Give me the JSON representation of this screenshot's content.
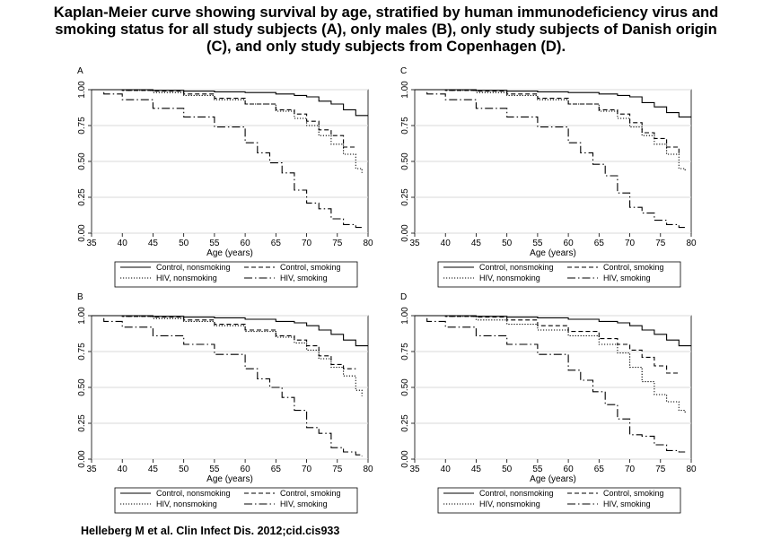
{
  "title": {
    "line1": "Kaplan-Meier curve showing survival by age, stratified by human immunodeficiency virus and",
    "line2": "smoking status for all study subjects (A),  only males (B), only study subjects of Danish origin",
    "line3": "(C), and only study subjects from Copenhagen (D)."
  },
  "citation": "Helleberg M et al. Clin Infect Dis. 2012;cid.cis933",
  "colors": {
    "background": "#ffffff",
    "line": "#000000",
    "grid": "#d9d9d9"
  },
  "chart_data": [
    {
      "panel": "A",
      "type": "line",
      "xlabel": "Age (years)",
      "ylabel": "",
      "xlim": [
        35,
        80
      ],
      "ylim": [
        0,
        1
      ],
      "xticks": [
        "35",
        "40",
        "45",
        "50",
        "55",
        "60",
        "65",
        "70",
        "75",
        "80"
      ],
      "yticks": [
        "0.00",
        "0.25",
        "0.50",
        "0.75",
        "1.00"
      ],
      "grid": true,
      "legend_placement": "bottom",
      "series": [
        {
          "name": "Control, nonsmoking",
          "style": "solid",
          "x": [
            35,
            40,
            45,
            50,
            55,
            60,
            65,
            68,
            70,
            72,
            74,
            76,
            78,
            80
          ],
          "y": [
            1.0,
            1.0,
            0.995,
            0.99,
            0.985,
            0.98,
            0.97,
            0.96,
            0.95,
            0.92,
            0.9,
            0.86,
            0.82,
            0.82
          ]
        },
        {
          "name": "Control, smoking",
          "style": "dashed",
          "x": [
            35,
            40,
            45,
            50,
            55,
            60,
            65,
            68,
            70,
            72,
            74,
            76,
            78
          ],
          "y": [
            1.0,
            0.995,
            0.99,
            0.97,
            0.94,
            0.9,
            0.86,
            0.83,
            0.78,
            0.72,
            0.68,
            0.6,
            0.6
          ]
        },
        {
          "name": "HIV, nonsmoking",
          "style": "dotted",
          "x": [
            35,
            40,
            45,
            50,
            55,
            60,
            65,
            68,
            70,
            72,
            74,
            76,
            78,
            79
          ],
          "y": [
            1.0,
            0.995,
            0.98,
            0.96,
            0.93,
            0.9,
            0.85,
            0.8,
            0.75,
            0.68,
            0.62,
            0.55,
            0.45,
            0.42
          ]
        },
        {
          "name": "HIV, smoking",
          "style": "dashdot",
          "x": [
            35,
            37,
            40,
            45,
            50,
            55,
            60,
            62,
            64,
            66,
            68,
            70,
            72,
            74,
            76,
            78,
            79
          ],
          "y": [
            1.0,
            0.97,
            0.93,
            0.87,
            0.81,
            0.74,
            0.63,
            0.56,
            0.49,
            0.42,
            0.3,
            0.21,
            0.17,
            0.1,
            0.06,
            0.04,
            0.03
          ]
        }
      ]
    },
    {
      "panel": "C",
      "type": "line",
      "xlabel": "Age (years)",
      "ylabel": "",
      "xlim": [
        35,
        80
      ],
      "ylim": [
        0,
        1
      ],
      "xticks": [
        "35",
        "40",
        "45",
        "50",
        "55",
        "60",
        "65",
        "70",
        "75",
        "80"
      ],
      "yticks": [
        "0.00",
        "0.25",
        "0.50",
        "0.75",
        "1.00"
      ],
      "grid": true,
      "legend_placement": "bottom",
      "series": [
        {
          "name": "Control, nonsmoking",
          "style": "solid",
          "x": [
            35,
            40,
            45,
            50,
            55,
            60,
            65,
            68,
            70,
            72,
            74,
            76,
            78,
            80
          ],
          "y": [
            1.0,
            1.0,
            0.995,
            0.99,
            0.985,
            0.98,
            0.97,
            0.96,
            0.95,
            0.91,
            0.88,
            0.84,
            0.81,
            0.81
          ]
        },
        {
          "name": "Control, smoking",
          "style": "dashed",
          "x": [
            35,
            40,
            45,
            50,
            55,
            60,
            65,
            68,
            70,
            72,
            74,
            76,
            78
          ],
          "y": [
            1.0,
            0.995,
            0.99,
            0.97,
            0.94,
            0.9,
            0.86,
            0.83,
            0.77,
            0.7,
            0.66,
            0.6,
            0.55
          ]
        },
        {
          "name": "HIV, nonsmoking",
          "style": "dotted",
          "x": [
            35,
            40,
            45,
            50,
            55,
            60,
            65,
            68,
            70,
            72,
            74,
            76,
            78,
            79
          ],
          "y": [
            1.0,
            0.995,
            0.98,
            0.96,
            0.93,
            0.9,
            0.85,
            0.8,
            0.74,
            0.68,
            0.62,
            0.55,
            0.45,
            0.43
          ]
        },
        {
          "name": "HIV, smoking",
          "style": "dashdot",
          "x": [
            35,
            37,
            40,
            45,
            50,
            55,
            60,
            62,
            64,
            66,
            68,
            70,
            72,
            74,
            76,
            78,
            79
          ],
          "y": [
            1.0,
            0.97,
            0.93,
            0.87,
            0.81,
            0.74,
            0.63,
            0.56,
            0.48,
            0.4,
            0.28,
            0.18,
            0.14,
            0.09,
            0.06,
            0.04,
            0.03
          ]
        }
      ]
    },
    {
      "panel": "B",
      "type": "line",
      "xlabel": "Age (years)",
      "ylabel": "",
      "xlim": [
        35,
        80
      ],
      "ylim": [
        0,
        1
      ],
      "xticks": [
        "35",
        "40",
        "45",
        "50",
        "55",
        "60",
        "65",
        "70",
        "75",
        "80"
      ],
      "yticks": [
        "0.00",
        "0.25",
        "0.50",
        "0.75",
        "1.00"
      ],
      "grid": true,
      "legend_placement": "bottom",
      "series": [
        {
          "name": "Control, nonsmoking",
          "style": "solid",
          "x": [
            35,
            40,
            45,
            50,
            55,
            60,
            65,
            68,
            70,
            72,
            74,
            76,
            78,
            80
          ],
          "y": [
            1.0,
            1.0,
            0.995,
            0.99,
            0.985,
            0.975,
            0.96,
            0.95,
            0.93,
            0.9,
            0.87,
            0.83,
            0.79,
            0.79
          ]
        },
        {
          "name": "Control, smoking",
          "style": "dashed",
          "x": [
            35,
            40,
            45,
            50,
            55,
            60,
            65,
            68,
            70,
            72,
            74,
            76,
            78
          ],
          "y": [
            1.0,
            0.995,
            0.99,
            0.97,
            0.94,
            0.9,
            0.86,
            0.83,
            0.79,
            0.72,
            0.66,
            0.63,
            0.63
          ]
        },
        {
          "name": "HIV, nonsmoking",
          "style": "dotted",
          "x": [
            35,
            40,
            45,
            50,
            55,
            60,
            65,
            68,
            70,
            72,
            74,
            76,
            78,
            79
          ],
          "y": [
            1.0,
            0.995,
            0.98,
            0.96,
            0.93,
            0.89,
            0.85,
            0.81,
            0.76,
            0.7,
            0.64,
            0.58,
            0.48,
            0.44
          ]
        },
        {
          "name": "HIV, smoking",
          "style": "dashdot",
          "x": [
            35,
            37,
            40,
            45,
            50,
            55,
            60,
            62,
            64,
            66,
            68,
            70,
            72,
            74,
            76,
            78,
            79
          ],
          "y": [
            1.0,
            0.96,
            0.92,
            0.86,
            0.8,
            0.73,
            0.63,
            0.56,
            0.5,
            0.43,
            0.34,
            0.22,
            0.18,
            0.08,
            0.05,
            0.03,
            0.02
          ]
        }
      ]
    },
    {
      "panel": "D",
      "type": "line",
      "xlabel": "Age (years)",
      "ylabel": "",
      "xlim": [
        35,
        80
      ],
      "ylim": [
        0,
        1
      ],
      "xticks": [
        "35",
        "40",
        "45",
        "50",
        "55",
        "60",
        "65",
        "70",
        "75",
        "80"
      ],
      "yticks": [
        "0.00",
        "0.25",
        "0.50",
        "0.75",
        "1.00"
      ],
      "grid": true,
      "legend_placement": "bottom",
      "series": [
        {
          "name": "Control, nonsmoking",
          "style": "solid",
          "x": [
            35,
            40,
            45,
            50,
            55,
            60,
            65,
            68,
            70,
            72,
            74,
            76,
            78,
            80
          ],
          "y": [
            1.0,
            1.0,
            0.995,
            0.99,
            0.985,
            0.975,
            0.96,
            0.95,
            0.93,
            0.9,
            0.87,
            0.83,
            0.79,
            0.79
          ]
        },
        {
          "name": "Control, smoking",
          "style": "dashed",
          "x": [
            35,
            40,
            45,
            50,
            55,
            60,
            65,
            68,
            70,
            72,
            74,
            76,
            78
          ],
          "y": [
            1.0,
            0.995,
            0.99,
            0.97,
            0.93,
            0.89,
            0.84,
            0.8,
            0.76,
            0.71,
            0.65,
            0.6,
            0.6
          ]
        },
        {
          "name": "HIV, nonsmoking",
          "style": "dotted",
          "x": [
            35,
            40,
            45,
            50,
            55,
            60,
            65,
            68,
            70,
            72,
            74,
            76,
            78,
            79
          ],
          "y": [
            1.0,
            0.995,
            0.97,
            0.94,
            0.9,
            0.86,
            0.8,
            0.74,
            0.64,
            0.54,
            0.45,
            0.4,
            0.34,
            0.32
          ]
        },
        {
          "name": "HIV, smoking",
          "style": "dashdot",
          "x": [
            35,
            37,
            40,
            45,
            50,
            55,
            60,
            62,
            64,
            66,
            68,
            70,
            72,
            74,
            76,
            78,
            79
          ],
          "y": [
            1.0,
            0.96,
            0.92,
            0.86,
            0.8,
            0.73,
            0.62,
            0.55,
            0.47,
            0.38,
            0.28,
            0.17,
            0.16,
            0.1,
            0.06,
            0.05,
            0.05
          ]
        }
      ]
    }
  ]
}
